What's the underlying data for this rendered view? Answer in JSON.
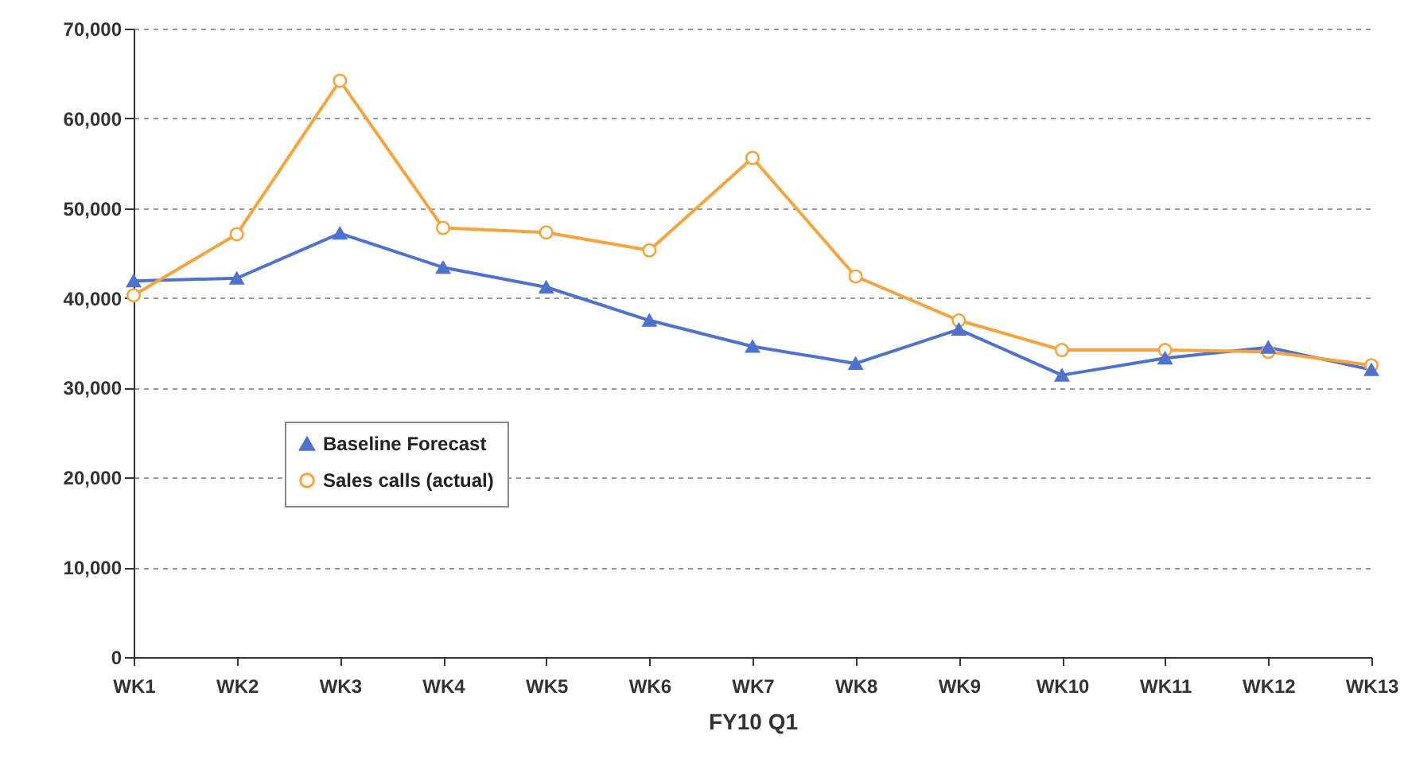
{
  "chart_data": {
    "type": "line",
    "xlabel": "FY10 Q1",
    "categories": [
      "WK1",
      "WK2",
      "WK3",
      "WK4",
      "WK5",
      "WK6",
      "WK7",
      "WK8",
      "WK9",
      "WK10",
      "WK11",
      "WK12",
      "WK13"
    ],
    "series": [
      {
        "name": "Baseline Forecast",
        "color": "#4f72d0",
        "marker": "triangle",
        "values": [
          41900,
          42200,
          47200,
          43400,
          41200,
          37500,
          34600,
          32700,
          36500,
          31400,
          33300,
          34500,
          32000
        ]
      },
      {
        "name": "Sales calls (actual)",
        "color": "#f5a442",
        "marker": "circle",
        "values": [
          40300,
          47100,
          64200,
          47800,
          47300,
          45300,
          55600,
          42400,
          37500,
          34200,
          34200,
          34000,
          32500
        ]
      }
    ],
    "ylim": [
      0,
      70000
    ],
    "yticks": [
      0,
      {
        "value": 10000,
        "label": "10,000"
      },
      {
        "value": 20000,
        "label": "20,000"
      },
      {
        "value": 30000,
        "label": "30,000"
      },
      {
        "value": 40000,
        "label": "40,000"
      },
      {
        "value": 50000,
        "label": "50,000"
      },
      {
        "value": 60000,
        "label": "60,000"
      },
      {
        "value": 70000,
        "label": "70,000"
      }
    ],
    "grid": "y",
    "legend": "bottom left",
    "line_style": "solid"
  }
}
